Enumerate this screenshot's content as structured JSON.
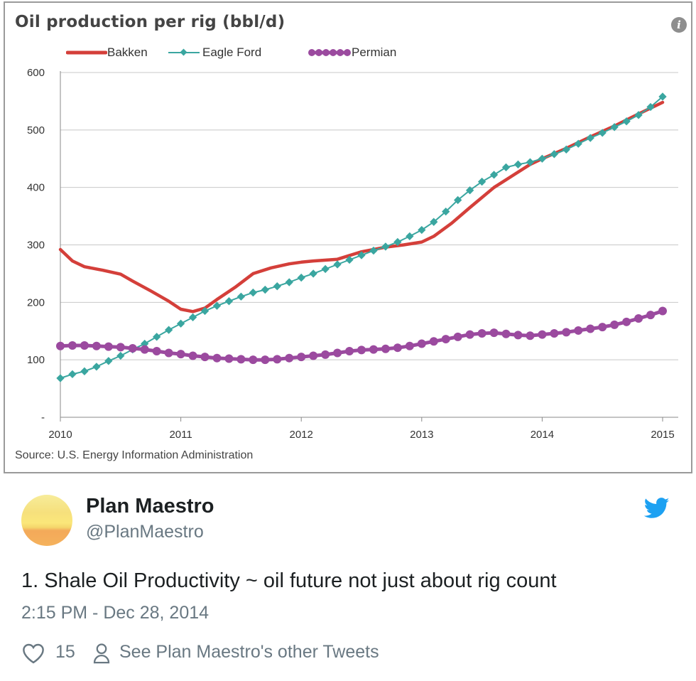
{
  "chart": {
    "title": "Oil production per rig (bbl/d)",
    "source": "Source: U.S. Energy Information Administration",
    "info_icon": "info-icon"
  },
  "chart_data": {
    "type": "line",
    "title": "Oil production per rig (bbl/d)",
    "xlabel": "",
    "ylabel": "",
    "xlim": [
      2010,
      2015
    ],
    "ylim": [
      0,
      600
    ],
    "x_ticks": [
      "2010",
      "2011",
      "2012",
      "2013",
      "2014",
      "2015"
    ],
    "y_ticks": [
      "-",
      "100",
      "200",
      "300",
      "400",
      "500",
      "600"
    ],
    "grid": true,
    "legend_position": "top",
    "series": [
      {
        "name": "Bakken",
        "color": "#d43f3a",
        "marker": "none",
        "x": [
          2010.0,
          2010.1,
          2010.2,
          2010.35,
          2010.5,
          2010.6,
          2010.75,
          2010.9,
          2011.0,
          2011.1,
          2011.2,
          2011.3,
          2011.45,
          2011.6,
          2011.75,
          2011.9,
          2012.0,
          2012.1,
          2012.3,
          2012.5,
          2012.7,
          2012.85,
          2013.0,
          2013.1,
          2013.25,
          2013.4,
          2013.6,
          2013.75,
          2013.9,
          2014.0,
          2014.2,
          2014.4,
          2014.6,
          2014.8,
          2015.0
        ],
        "y": [
          292,
          272,
          262,
          256,
          249,
          237,
          220,
          202,
          188,
          184,
          190,
          205,
          226,
          250,
          260,
          267,
          270,
          272,
          275,
          288,
          296,
          300,
          305,
          315,
          338,
          365,
          400,
          420,
          440,
          450,
          468,
          488,
          507,
          528,
          548
        ]
      },
      {
        "name": "Eagle Ford",
        "color": "#3aa6a0",
        "marker": "diamond",
        "x": [
          2010.0,
          2010.1,
          2010.2,
          2010.3,
          2010.4,
          2010.5,
          2010.6,
          2010.7,
          2010.8,
          2010.9,
          2011.0,
          2011.1,
          2011.2,
          2011.3,
          2011.4,
          2011.5,
          2011.6,
          2011.7,
          2011.8,
          2011.9,
          2012.0,
          2012.1,
          2012.2,
          2012.3,
          2012.4,
          2012.5,
          2012.6,
          2012.7,
          2012.8,
          2012.9,
          2013.0,
          2013.1,
          2013.2,
          2013.3,
          2013.4,
          2013.5,
          2013.6,
          2013.7,
          2013.8,
          2013.9,
          2014.0,
          2014.1,
          2014.2,
          2014.3,
          2014.4,
          2014.5,
          2014.6,
          2014.7,
          2014.8,
          2014.9,
          2015.0
        ],
        "y": [
          68,
          75,
          80,
          88,
          98,
          107,
          118,
          128,
          140,
          152,
          163,
          174,
          185,
          194,
          202,
          210,
          217,
          222,
          228,
          235,
          243,
          250,
          258,
          266,
          274,
          282,
          290,
          297,
          305,
          315,
          326,
          340,
          358,
          378,
          395,
          410,
          422,
          435,
          440,
          444,
          450,
          458,
          466,
          476,
          486,
          495,
          505,
          515,
          526,
          540,
          558
        ]
      },
      {
        "name": "Permian",
        "color": "#9b4a9f",
        "marker": "circle",
        "x": [
          2010.0,
          2010.1,
          2010.2,
          2010.3,
          2010.4,
          2010.5,
          2010.6,
          2010.7,
          2010.8,
          2010.9,
          2011.0,
          2011.1,
          2011.2,
          2011.3,
          2011.4,
          2011.5,
          2011.6,
          2011.7,
          2011.8,
          2011.9,
          2012.0,
          2012.1,
          2012.2,
          2012.3,
          2012.4,
          2012.5,
          2012.6,
          2012.7,
          2012.8,
          2012.9,
          2013.0,
          2013.1,
          2013.2,
          2013.3,
          2013.4,
          2013.5,
          2013.6,
          2013.7,
          2013.8,
          2013.9,
          2014.0,
          2014.1,
          2014.2,
          2014.3,
          2014.4,
          2014.5,
          2014.6,
          2014.7,
          2014.8,
          2014.9,
          2015.0
        ],
        "y": [
          124,
          125,
          125,
          124,
          123,
          122,
          120,
          118,
          115,
          112,
          110,
          107,
          105,
          103,
          102,
          101,
          100,
          100,
          101,
          103,
          105,
          107,
          109,
          112,
          115,
          117,
          118,
          119,
          121,
          124,
          128,
          132,
          136,
          140,
          144,
          146,
          147,
          145,
          143,
          142,
          144,
          146,
          148,
          151,
          154,
          157,
          161,
          166,
          172,
          178,
          185
        ]
      }
    ]
  },
  "tweet": {
    "display_name": "Plan Maestro",
    "handle": "@PlanMaestro",
    "text": "1. Shale Oil Productivity ~ oil future not just about rig count",
    "timestamp": "2:15 PM - Dec 28, 2014",
    "like_count": "15",
    "other_tweets_link": "See Plan Maestro's other Tweets",
    "icons": {
      "avatar": "avatar",
      "brand": "twitter-bird-icon",
      "like": "heart-icon",
      "profile": "person-icon"
    },
    "colors": {
      "brand": "#1da1f2",
      "secondary_text": "#697882",
      "primary_text": "#1c2022"
    }
  }
}
